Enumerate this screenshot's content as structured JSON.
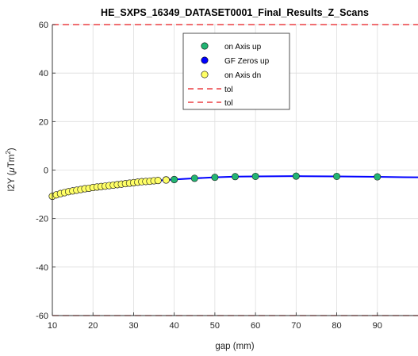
{
  "chart_data": {
    "type": "line",
    "title": "HE_SXPS_16349_DATASET0001_Final_Results_Z_Scans",
    "xlabel": "gap (mm)",
    "ylabel_main": "I2Y (",
    "ylabel_mu": "μ",
    "ylabel_unit": "Tm",
    "ylabel_sup": "2",
    "ylabel_close": ")",
    "xlim": [
      10,
      100
    ],
    "ylim": [
      -60,
      60
    ],
    "xticks": [
      10,
      20,
      30,
      40,
      50,
      60,
      70,
      80,
      90
    ],
    "yticks": [
      -60,
      -40,
      -20,
      0,
      20,
      40,
      60
    ],
    "grid": true,
    "legend_position": "top-center",
    "colors": {
      "on_axis_up": "#22b573",
      "gf_zeros_up": "#0000ff",
      "on_axis_dn": "#ffff66",
      "tol": "#e8191f",
      "line": "#0000ff"
    },
    "series": [
      {
        "name": "on Axis up",
        "marker": "circle",
        "x": [
          38,
          40,
          45,
          50,
          55,
          60,
          70,
          80,
          90,
          100
        ],
        "y": [
          -4.0,
          -3.9,
          -3.4,
          -3.0,
          -2.7,
          -2.6,
          -2.5,
          -2.6,
          -2.8,
          -3.0
        ]
      },
      {
        "name": "GF Zeros up",
        "marker": "circle",
        "x": [
          10,
          11,
          12,
          13,
          14,
          15,
          16,
          17,
          18,
          19,
          20,
          21,
          22,
          23,
          24,
          25,
          26,
          27,
          28,
          29,
          30,
          31,
          32,
          33,
          34,
          35,
          36,
          38,
          40
        ],
        "y": [
          -10.8,
          -10.2,
          -9.7,
          -9.3,
          -8.9,
          -8.6,
          -8.3,
          -8.0,
          -7.7,
          -7.5,
          -7.2,
          -7.0,
          -6.8,
          -6.6,
          -6.4,
          -6.2,
          -6.0,
          -5.8,
          -5.6,
          -5.4,
          -5.2,
          -5.0,
          -4.8,
          -4.7,
          -4.6,
          -4.4,
          -4.3,
          -4.1,
          -3.9
        ]
      },
      {
        "name": "on Axis dn",
        "marker": "circle",
        "x": [
          10,
          11,
          12,
          13,
          14,
          15,
          16,
          17,
          18,
          19,
          20,
          21,
          22,
          23,
          24,
          25,
          26,
          27,
          28,
          29,
          30,
          31,
          32,
          33,
          34,
          35,
          36,
          38
        ],
        "y": [
          -10.8,
          -10.2,
          -9.7,
          -9.3,
          -8.9,
          -8.6,
          -8.3,
          -8.0,
          -7.7,
          -7.5,
          -7.2,
          -7.0,
          -6.8,
          -6.6,
          -6.4,
          -6.2,
          -6.0,
          -5.8,
          -5.6,
          -5.4,
          -5.2,
          -5.0,
          -4.8,
          -4.7,
          -4.6,
          -4.4,
          -4.3,
          -4.1
        ]
      },
      {
        "name": "tol",
        "marker": "dashed-line",
        "y_constant": 60
      },
      {
        "name": "tol",
        "marker": "dashed-line",
        "y_constant": -60
      }
    ]
  }
}
